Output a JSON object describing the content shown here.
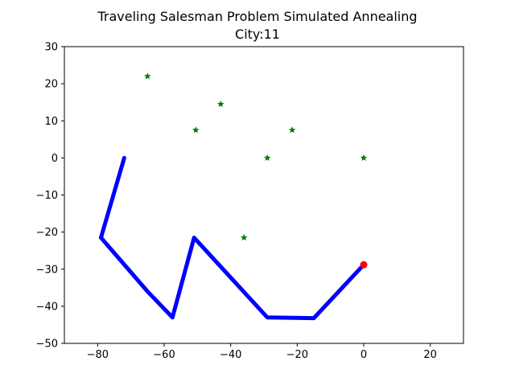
{
  "chart_data": {
    "type": "line",
    "title": "Traveling Salesman Problem Simulated Annealing",
    "subtitle": "City:11",
    "xlabel": "",
    "ylabel": "",
    "xlim": [
      -90,
      30
    ],
    "ylim": [
      -50,
      30
    ],
    "xticks": [
      -80,
      -60,
      -40,
      -20,
      0,
      20
    ],
    "yticks": [
      30,
      20,
      10,
      0,
      -10,
      -20,
      -30,
      -40,
      -50
    ],
    "grid": false,
    "series": [
      {
        "kind": "path",
        "color": "#0000ff",
        "points": [
          {
            "x": -72,
            "y": 0
          },
          {
            "x": -79,
            "y": -21.5
          },
          {
            "x": -65,
            "y": -36
          },
          {
            "x": -57.5,
            "y": -43
          },
          {
            "x": -51,
            "y": -21.5
          },
          {
            "x": -29,
            "y": -43
          },
          {
            "x": -15,
            "y": -43.2
          },
          {
            "x": 0,
            "y": -28.8
          }
        ]
      },
      {
        "kind": "cities",
        "color": "#008000",
        "marker": "star",
        "points": [
          {
            "x": -65,
            "y": 22
          },
          {
            "x": -43,
            "y": 14.5
          },
          {
            "x": -50.5,
            "y": 7.5
          },
          {
            "x": -21.5,
            "y": 7.5
          },
          {
            "x": -29,
            "y": 0
          },
          {
            "x": 0,
            "y": 0
          },
          {
            "x": -36,
            "y": -21.5
          }
        ]
      },
      {
        "kind": "current",
        "color": "#ff0000",
        "marker": "circle",
        "points": [
          {
            "x": 0,
            "y": -28.8
          }
        ]
      }
    ]
  }
}
